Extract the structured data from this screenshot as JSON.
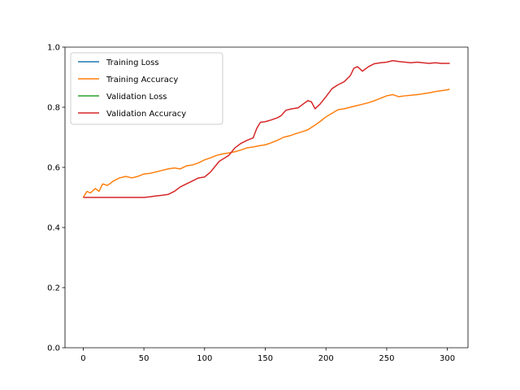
{
  "chart_data": {
    "type": "line",
    "title": "",
    "xlabel": "",
    "ylabel": "",
    "xlim": [
      -15,
      317
    ],
    "ylim": [
      0.0,
      1.0
    ],
    "xticks": [
      0,
      50,
      100,
      150,
      200,
      250,
      300
    ],
    "xtick_labels": [
      "0",
      "50",
      "100",
      "150",
      "200",
      "250",
      "300"
    ],
    "yticks": [
      0.0,
      0.2,
      0.4,
      0.6,
      0.8,
      1.0
    ],
    "ytick_labels": [
      "0.0",
      "0.2",
      "0.4",
      "0.6",
      "0.8",
      "1.0"
    ],
    "grid": false,
    "legend_position": "top-left",
    "series": [
      {
        "name": "Training Loss",
        "color": "#1f77b4",
        "points": []
      },
      {
        "name": "Training Accuracy",
        "color": "#ff7f0e",
        "points": [
          [
            0,
            0.5
          ],
          [
            3,
            0.52
          ],
          [
            6,
            0.515
          ],
          [
            10,
            0.53
          ],
          [
            13,
            0.52
          ],
          [
            16,
            0.545
          ],
          [
            20,
            0.54
          ],
          [
            25,
            0.555
          ],
          [
            30,
            0.565
          ],
          [
            35,
            0.57
          ],
          [
            40,
            0.565
          ],
          [
            45,
            0.57
          ],
          [
            50,
            0.578
          ],
          [
            55,
            0.58
          ],
          [
            60,
            0.585
          ],
          [
            65,
            0.59
          ],
          [
            70,
            0.595
          ],
          [
            75,
            0.598
          ],
          [
            80,
            0.595
          ],
          [
            85,
            0.605
          ],
          [
            90,
            0.608
          ],
          [
            95,
            0.615
          ],
          [
            100,
            0.625
          ],
          [
            105,
            0.632
          ],
          [
            110,
            0.64
          ],
          [
            115,
            0.645
          ],
          [
            120,
            0.648
          ],
          [
            125,
            0.652
          ],
          [
            130,
            0.658
          ],
          [
            135,
            0.665
          ],
          [
            140,
            0.668
          ],
          [
            145,
            0.672
          ],
          [
            150,
            0.675
          ],
          [
            155,
            0.682
          ],
          [
            160,
            0.69
          ],
          [
            165,
            0.7
          ],
          [
            170,
            0.705
          ],
          [
            175,
            0.712
          ],
          [
            180,
            0.718
          ],
          [
            185,
            0.725
          ],
          [
            190,
            0.738
          ],
          [
            195,
            0.752
          ],
          [
            200,
            0.768
          ],
          [
            205,
            0.78
          ],
          [
            210,
            0.792
          ],
          [
            215,
            0.795
          ],
          [
            220,
            0.8
          ],
          [
            225,
            0.805
          ],
          [
            230,
            0.81
          ],
          [
            235,
            0.815
          ],
          [
            240,
            0.822
          ],
          [
            245,
            0.83
          ],
          [
            250,
            0.838
          ],
          [
            255,
            0.842
          ],
          [
            260,
            0.835
          ],
          [
            265,
            0.838
          ],
          [
            270,
            0.84
          ],
          [
            275,
            0.842
          ],
          [
            280,
            0.845
          ],
          [
            285,
            0.848
          ],
          [
            290,
            0.852
          ],
          [
            295,
            0.855
          ],
          [
            300,
            0.858
          ],
          [
            302,
            0.86
          ]
        ]
      },
      {
        "name": "Validation Loss",
        "color": "#2ca02c",
        "points": []
      },
      {
        "name": "Validation Accuracy",
        "color": "#d62728",
        "points": [
          [
            0,
            0.5
          ],
          [
            10,
            0.5
          ],
          [
            20,
            0.5
          ],
          [
            30,
            0.5
          ],
          [
            40,
            0.5
          ],
          [
            50,
            0.5
          ],
          [
            55,
            0.502
          ],
          [
            60,
            0.505
          ],
          [
            65,
            0.507
          ],
          [
            70,
            0.51
          ],
          [
            75,
            0.52
          ],
          [
            80,
            0.535
          ],
          [
            85,
            0.545
          ],
          [
            90,
            0.555
          ],
          [
            95,
            0.565
          ],
          [
            100,
            0.568
          ],
          [
            105,
            0.585
          ],
          [
            108,
            0.6
          ],
          [
            112,
            0.62
          ],
          [
            116,
            0.63
          ],
          [
            120,
            0.64
          ],
          [
            125,
            0.665
          ],
          [
            130,
            0.68
          ],
          [
            135,
            0.69
          ],
          [
            140,
            0.698
          ],
          [
            143,
            0.73
          ],
          [
            146,
            0.75
          ],
          [
            150,
            0.752
          ],
          [
            155,
            0.758
          ],
          [
            160,
            0.765
          ],
          [
            163,
            0.772
          ],
          [
            167,
            0.79
          ],
          [
            172,
            0.795
          ],
          [
            177,
            0.798
          ],
          [
            181,
            0.81
          ],
          [
            185,
            0.822
          ],
          [
            188,
            0.818
          ],
          [
            191,
            0.795
          ],
          [
            195,
            0.81
          ],
          [
            200,
            0.835
          ],
          [
            205,
            0.862
          ],
          [
            210,
            0.875
          ],
          [
            215,
            0.885
          ],
          [
            220,
            0.905
          ],
          [
            223,
            0.93
          ],
          [
            226,
            0.935
          ],
          [
            230,
            0.92
          ],
          [
            235,
            0.935
          ],
          [
            240,
            0.945
          ],
          [
            245,
            0.948
          ],
          [
            250,
            0.95
          ],
          [
            255,
            0.955
          ],
          [
            260,
            0.952
          ],
          [
            265,
            0.95
          ],
          [
            270,
            0.948
          ],
          [
            275,
            0.95
          ],
          [
            280,
            0.948
          ],
          [
            285,
            0.946
          ],
          [
            290,
            0.948
          ],
          [
            295,
            0.946
          ],
          [
            300,
            0.946
          ],
          [
            302,
            0.946
          ]
        ]
      }
    ]
  }
}
